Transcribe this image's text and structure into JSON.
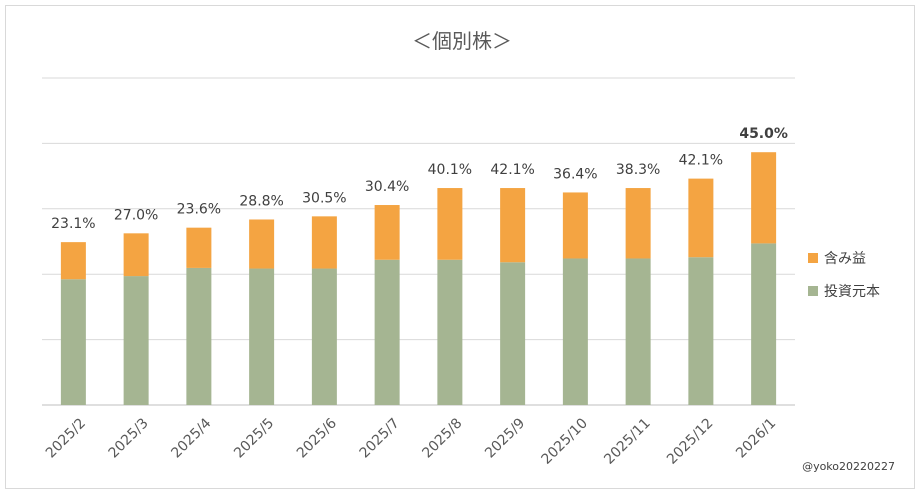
{
  "chart_data": {
    "type": "bar",
    "stacked": true,
    "title": "＜個別株＞",
    "categories": [
      "2025/2",
      "2025/3",
      "2025/4",
      "2025/5",
      "2025/6",
      "2025/7",
      "2025/8",
      "2025/9",
      "2025/10",
      "2025/11",
      "2025/12",
      "2026/1"
    ],
    "series": [
      {
        "name": "投資元本",
        "color": "#a5b592",
        "values": [
          100,
          102.5,
          109,
          108.5,
          108.5,
          115.5,
          115.5,
          113.5,
          116.5,
          116.5,
          117.5,
          128.5
        ]
      },
      {
        "name": "含み益",
        "color": "#f4a442",
        "values": [
          29.5,
          34,
          32,
          39,
          41.5,
          43.5,
          57,
          59,
          52.5,
          56,
          62.5,
          72.5
        ]
      }
    ],
    "data_labels": [
      "23.1%",
      "27.0%",
      "23.6%",
      "28.8%",
      "30.5%",
      "30.4%",
      "40.1%",
      "42.1%",
      "36.4%",
      "38.3%",
      "42.1%",
      "45.0%"
    ],
    "highlight_label_index": 11,
    "ylim": [
      0,
      260
    ],
    "grid": true,
    "gridline_step": 52,
    "legend_position": "right",
    "xlabel": "",
    "ylabel": ""
  },
  "credit": "@yoko20220227"
}
